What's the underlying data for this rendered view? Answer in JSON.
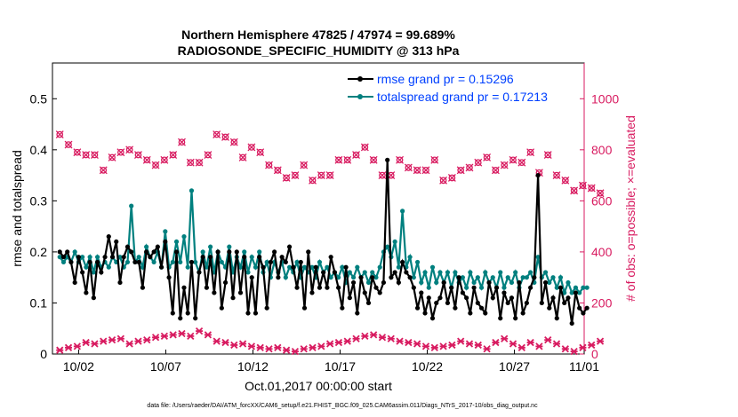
{
  "chart_data": {
    "type": "line",
    "title_line1": "Northern Hemisphere 47825 / 47974 = 99.689%",
    "title_line2": "RADIOSONDE_SPECIFIC_HUMIDITY @ 313 hPa",
    "xlabel": "Oct.01,2017 00:00:00 start",
    "ylabel_left": "rmse and totalspread",
    "ylabel_right": "# of obs: o=possible; ×=evaluated",
    "footnote": "data file: /Users/raeder/DAI/ATM_forcXX/CAM6_setup/f.e21.FHIST_BGC.f09_025.CAM6assim.011/Diags_NTrS_2017-10/obs_diag_output.nc",
    "x_range": [
      0.5,
      31.0
    ],
    "ylim_left": [
      0,
      0.57
    ],
    "ylim_right": [
      0,
      1140
    ],
    "left_ticks": [
      "0",
      "0.1",
      "0.2",
      "0.3",
      "0.4",
      "0.5"
    ],
    "right_ticks": [
      "0",
      "200",
      "400",
      "600",
      "800",
      "1000"
    ],
    "x_ticks": [
      {
        "day": 2,
        "label": "10/02"
      },
      {
        "day": 7,
        "label": "10/07"
      },
      {
        "day": 12,
        "label": "10/12"
      },
      {
        "day": 17,
        "label": "10/17"
      },
      {
        "day": 22,
        "label": "10/22"
      },
      {
        "day": 27,
        "label": "10/27"
      },
      {
        "day": 32,
        "label": "11/01"
      }
    ],
    "colors": {
      "rmse": "#000000",
      "spread": "#00807f",
      "obs": "#d81b60",
      "legend_text": "#0040ff",
      "axis_right": "#d81b60"
    },
    "legend": {
      "position": "top-right"
    },
    "series": [
      {
        "name": "rmse grand pr = 0.15296",
        "key": "rmse",
        "values": [
          0.2,
          0.19,
          0.2,
          0.18,
          0.14,
          0.19,
          0.16,
          0.12,
          0.18,
          0.11,
          0.18,
          0.16,
          0.19,
          0.23,
          0.19,
          0.22,
          0.14,
          0.19,
          0.21,
          0.2,
          0.18,
          0.18,
          0.13,
          0.2,
          0.19,
          0.2,
          0.21,
          0.17,
          0.22,
          0.15,
          0.08,
          0.2,
          0.07,
          0.13,
          0.08,
          0.18,
          0.07,
          0.16,
          0.19,
          0.13,
          0.19,
          0.12,
          0.2,
          0.09,
          0.14,
          0.2,
          0.11,
          0.2,
          0.12,
          0.19,
          0.08,
          0.15,
          0.08,
          0.19,
          0.17,
          0.09,
          0.18,
          0.2,
          0.15,
          0.19,
          0.18,
          0.21,
          0.17,
          0.13,
          0.18,
          0.09,
          0.2,
          0.12,
          0.17,
          0.13,
          0.16,
          0.13,
          0.19,
          0.16,
          0.13,
          0.09,
          0.17,
          0.11,
          0.14,
          0.08,
          0.15,
          0.12,
          0.1,
          0.15,
          0.13,
          0.12,
          0.14,
          0.38,
          0.15,
          0.16,
          0.14,
          0.18,
          0.16,
          0.15,
          0.13,
          0.09,
          0.12,
          0.08,
          0.11,
          0.07,
          0.1,
          0.11,
          0.14,
          0.1,
          0.13,
          0.09,
          0.15,
          0.12,
          0.11,
          0.08,
          0.13,
          0.1,
          0.09,
          0.08,
          0.14,
          0.11,
          0.13,
          0.07,
          0.12,
          0.1,
          0.11,
          0.07,
          0.14,
          0.08,
          0.1,
          0.13,
          0.15,
          0.35,
          0.1,
          0.14,
          0.09,
          0.11,
          0.07,
          0.13,
          0.1,
          0.11,
          0.06,
          0.12,
          0.09,
          0.08,
          0.09
        ],
        "start_day": 0.92,
        "step_day": 0.216
      },
      {
        "name": "totalspread grand pr = 0.17213",
        "key": "spread",
        "values": [
          0.19,
          0.18,
          0.19,
          0.18,
          0.2,
          0.18,
          0.19,
          0.17,
          0.19,
          0.16,
          0.19,
          0.17,
          0.18,
          0.17,
          0.19,
          0.18,
          0.19,
          0.17,
          0.18,
          0.29,
          0.18,
          0.19,
          0.17,
          0.21,
          0.19,
          0.18,
          0.2,
          0.17,
          0.24,
          0.17,
          0.18,
          0.22,
          0.18,
          0.23,
          0.17,
          0.32,
          0.18,
          0.16,
          0.2,
          0.17,
          0.21,
          0.16,
          0.2,
          0.18,
          0.17,
          0.21,
          0.16,
          0.19,
          0.17,
          0.2,
          0.16,
          0.19,
          0.17,
          0.2,
          0.16,
          0.18,
          0.15,
          0.18,
          0.16,
          0.18,
          0.15,
          0.17,
          0.16,
          0.18,
          0.15,
          0.17,
          0.16,
          0.17,
          0.15,
          0.18,
          0.16,
          0.17,
          0.15,
          0.16,
          0.15,
          0.17,
          0.14,
          0.16,
          0.15,
          0.17,
          0.15,
          0.16,
          0.14,
          0.16,
          0.15,
          0.17,
          0.2,
          0.21,
          0.19,
          0.22,
          0.17,
          0.28,
          0.17,
          0.19,
          0.15,
          0.18,
          0.14,
          0.16,
          0.13,
          0.17,
          0.14,
          0.16,
          0.14,
          0.16,
          0.13,
          0.16,
          0.14,
          0.15,
          0.13,
          0.16,
          0.14,
          0.15,
          0.13,
          0.16,
          0.14,
          0.15,
          0.13,
          0.16,
          0.13,
          0.15,
          0.14,
          0.16,
          0.13,
          0.15,
          0.15,
          0.16,
          0.14,
          0.19,
          0.15,
          0.16,
          0.14,
          0.15,
          0.13,
          0.15,
          0.12,
          0.14,
          0.12,
          0.13,
          0.12,
          0.13,
          0.13
        ],
        "start_day": 0.92,
        "step_day": 0.216
      }
    ],
    "obs_possible": {
      "start_day": 0.92,
      "step_day": 0.5,
      "values": [
        860,
        820,
        790,
        780,
        780,
        720,
        770,
        790,
        800,
        780,
        760,
        740,
        760,
        780,
        830,
        750,
        750,
        780,
        860,
        850,
        830,
        770,
        810,
        790,
        740,
        720,
        690,
        700,
        740,
        680,
        700,
        700,
        760,
        760,
        780,
        810,
        760,
        700,
        700,
        760,
        730,
        720,
        720,
        760,
        680,
        690,
        720,
        730,
        750,
        770,
        720,
        740,
        760,
        750,
        790,
        710,
        780,
        700,
        680,
        640,
        660,
        650,
        630
      ],
      "marker": "o"
    },
    "obs_evaluated": {
      "start_day": 0.92,
      "step_day": 0.5,
      "values": [
        15,
        25,
        30,
        45,
        40,
        50,
        55,
        60,
        40,
        50,
        55,
        65,
        70,
        75,
        80,
        70,
        90,
        75,
        50,
        45,
        35,
        40,
        30,
        25,
        20,
        25,
        15,
        10,
        20,
        25,
        30,
        40,
        45,
        50,
        60,
        70,
        75,
        65,
        60,
        50,
        45,
        40,
        30,
        25,
        30,
        35,
        50,
        40,
        35,
        20,
        45,
        60,
        40,
        25,
        45,
        30,
        55,
        40,
        20,
        10,
        25,
        35,
        50
      ]
    }
  }
}
